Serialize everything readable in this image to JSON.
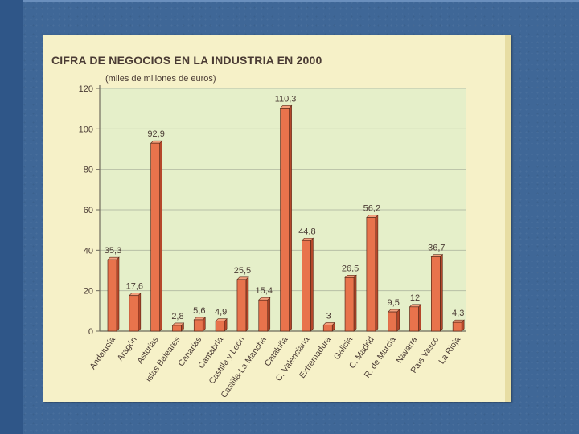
{
  "chart_data": {
    "type": "bar",
    "title": "CIFRA DE NEGOCIOS EN LA INDUSTRIA EN 2000",
    "subtitle": "(miles de millones de euros)",
    "xlabel": "",
    "ylabel": "",
    "ylim": [
      0,
      120
    ],
    "yticks": [
      "120",
      "100",
      "80",
      "60",
      "40",
      "20",
      "0"
    ],
    "grid": true,
    "legend": "none",
    "categories": [
      "Andalucía",
      "Aragón",
      "Asturias",
      "Islas Baleares",
      "Canarias",
      "Cantabria",
      "Castilla y León",
      "Castilla-La Mancha",
      "Cataluña",
      "C. Valenciana",
      "Extremadura",
      "Galicia",
      "C. Madrid",
      "R. de Murcia",
      "Navarra",
      "País Vasco",
      "La Rioja"
    ],
    "values": [
      35.3,
      17.6,
      92.9,
      2.8,
      5.6,
      4.9,
      25.5,
      15.4,
      110.3,
      44.8,
      3,
      26.5,
      56.2,
      9.5,
      12,
      36.7,
      4.3
    ],
    "value_labels": [
      "35,3",
      "17,6",
      "92,9",
      "2,8",
      "5,6",
      "4,9",
      "25,5",
      "15,4",
      "110,3",
      "44,8",
      "3",
      "26,5",
      "56,2",
      "9,5",
      "12",
      "36,7",
      "4,3"
    ],
    "colors": {
      "bar_front": "#e8734c",
      "bar_side": "#b5472a",
      "bar_top": "#f3a07d",
      "plot_background": "#e5efc9",
      "gridline": "#b7bfa6",
      "text": "#4a3b34",
      "paper": "#f6f1c8"
    }
  }
}
